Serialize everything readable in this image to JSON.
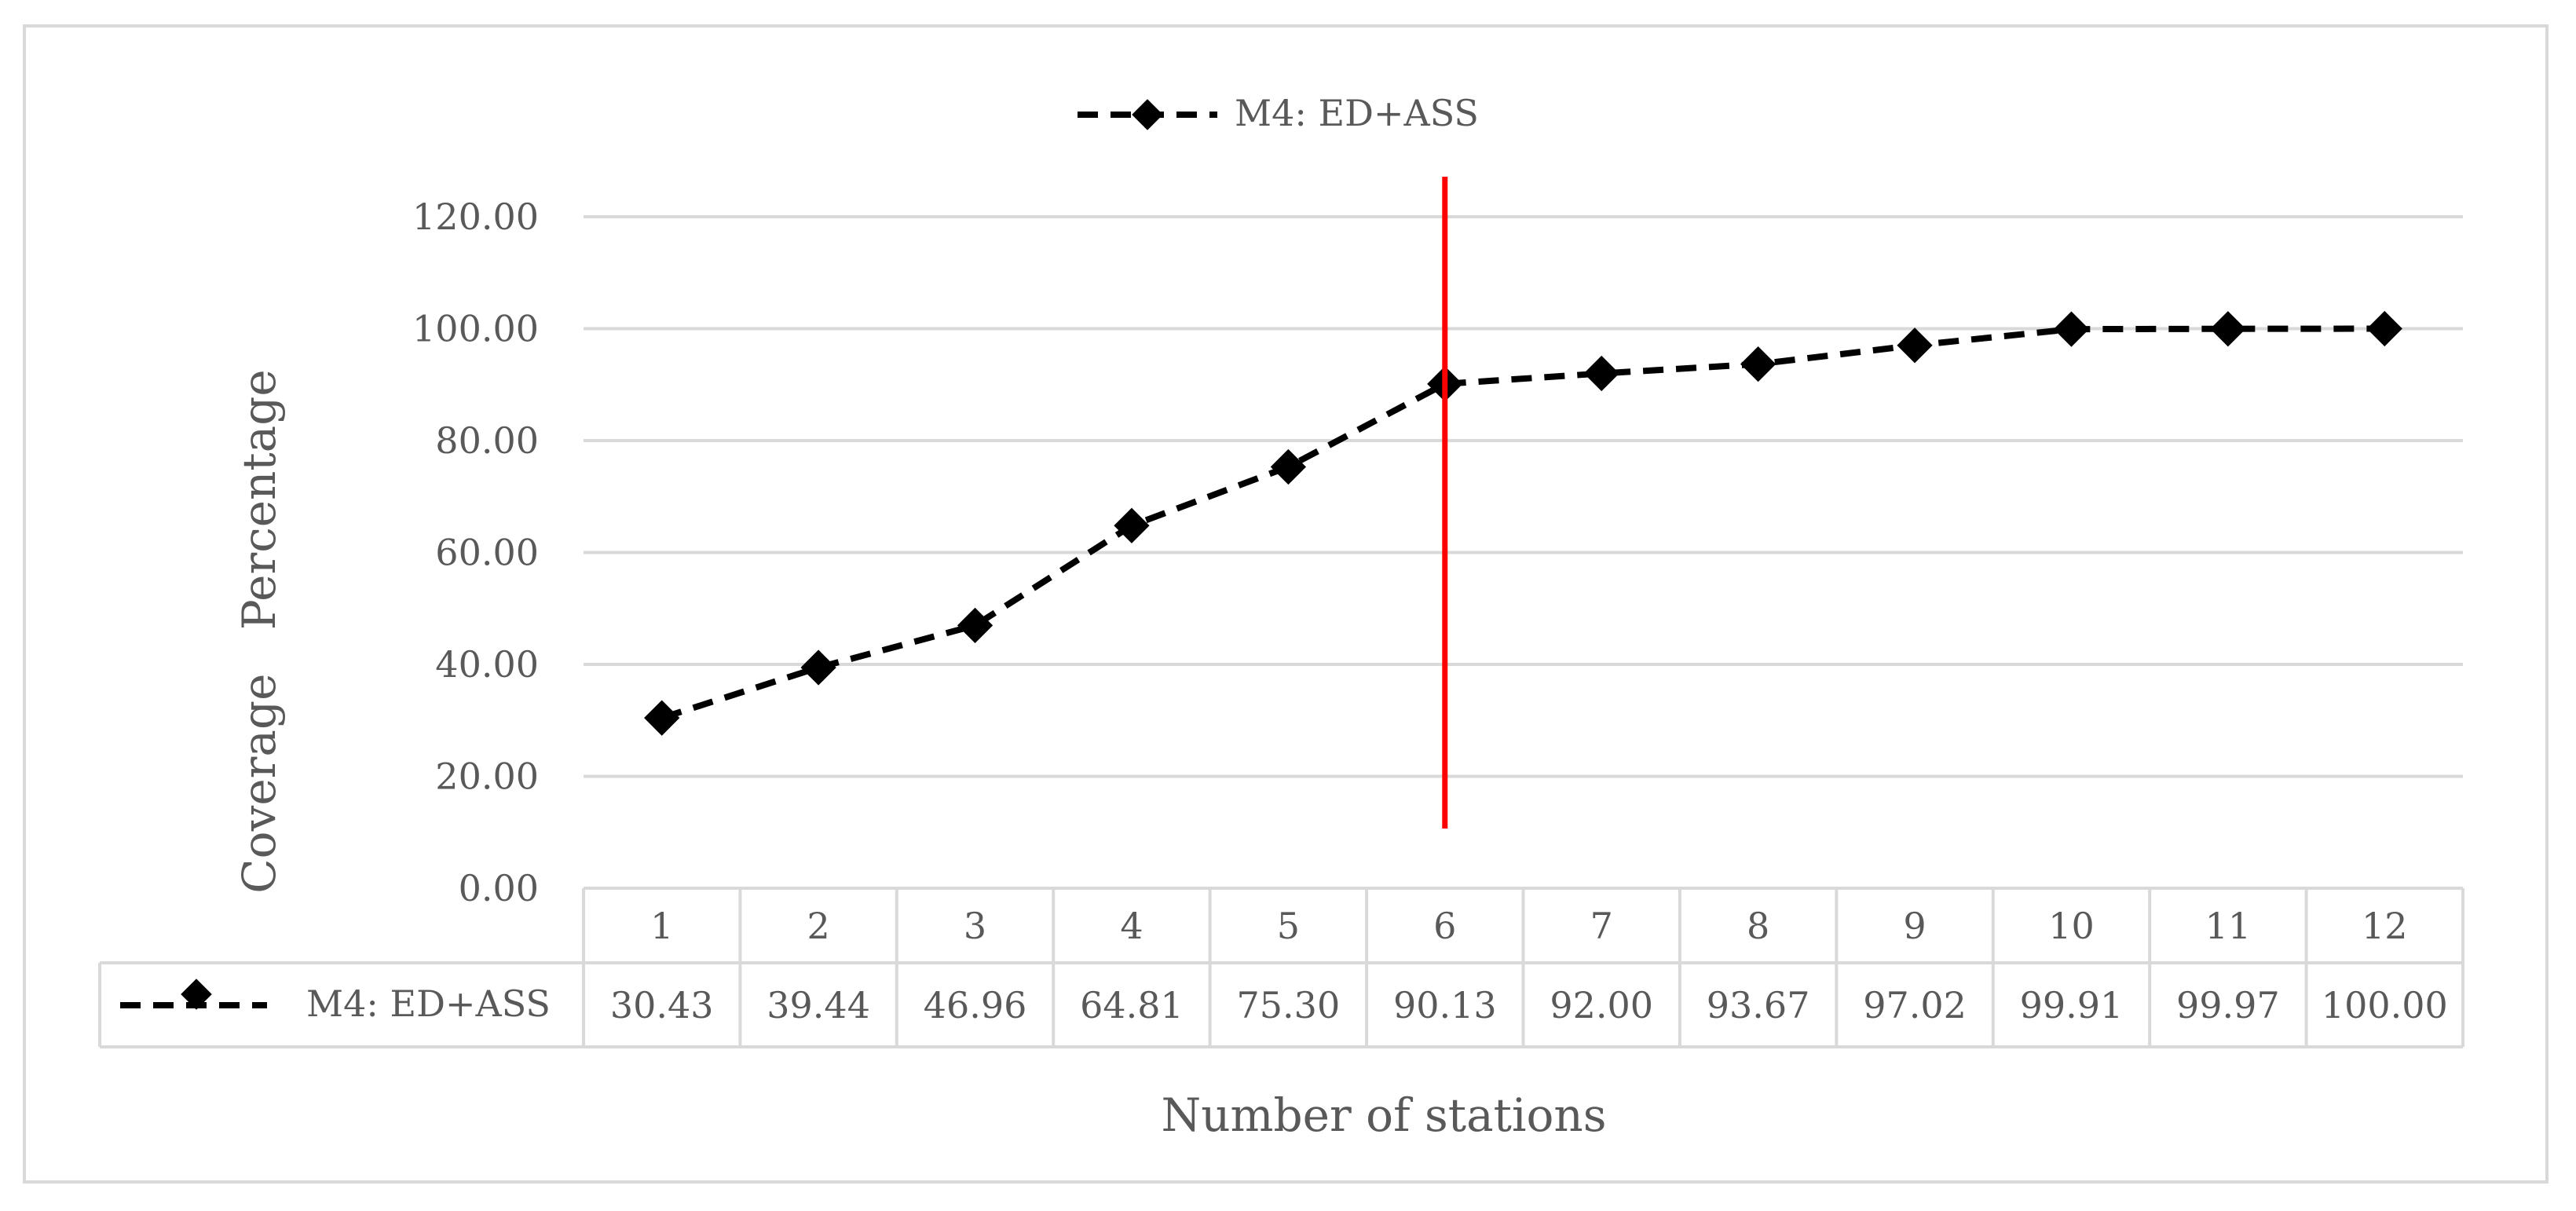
{
  "chart_data": {
    "type": "line",
    "title": "",
    "xlabel": "Number of stations",
    "ylabel": "Coverage   Percentage",
    "categories": [
      "1",
      "2",
      "3",
      "4",
      "5",
      "6",
      "7",
      "8",
      "9",
      "10",
      "11",
      "12"
    ],
    "series": [
      {
        "name": "M4: ED+ASS",
        "values": [
          30.43,
          39.44,
          46.96,
          64.81,
          75.3,
          90.13,
          92.0,
          93.67,
          97.02,
          99.91,
          99.97,
          100.0
        ],
        "value_labels": [
          "30.43",
          "39.44",
          "46.96",
          "64.81",
          "75.30",
          "90.13",
          "92.00",
          "93.67",
          "97.02",
          "99.91",
          "99.97",
          "100.00"
        ],
        "line_style": "dashed",
        "marker": "diamond",
        "color": "#000000"
      }
    ],
    "yticks": [
      "0.00",
      "20.00",
      "40.00",
      "60.00",
      "80.00",
      "100.00",
      "120.00"
    ],
    "ylim": [
      0,
      120
    ],
    "grid": true,
    "legend_position": "top",
    "data_table": true,
    "vertical_marker": {
      "category": "6",
      "color": "#ff0000"
    },
    "colors": {
      "gridline": "#d9d9d9",
      "text": "#595959",
      "series": "#000000",
      "marker_line": "#ff0000"
    }
  }
}
